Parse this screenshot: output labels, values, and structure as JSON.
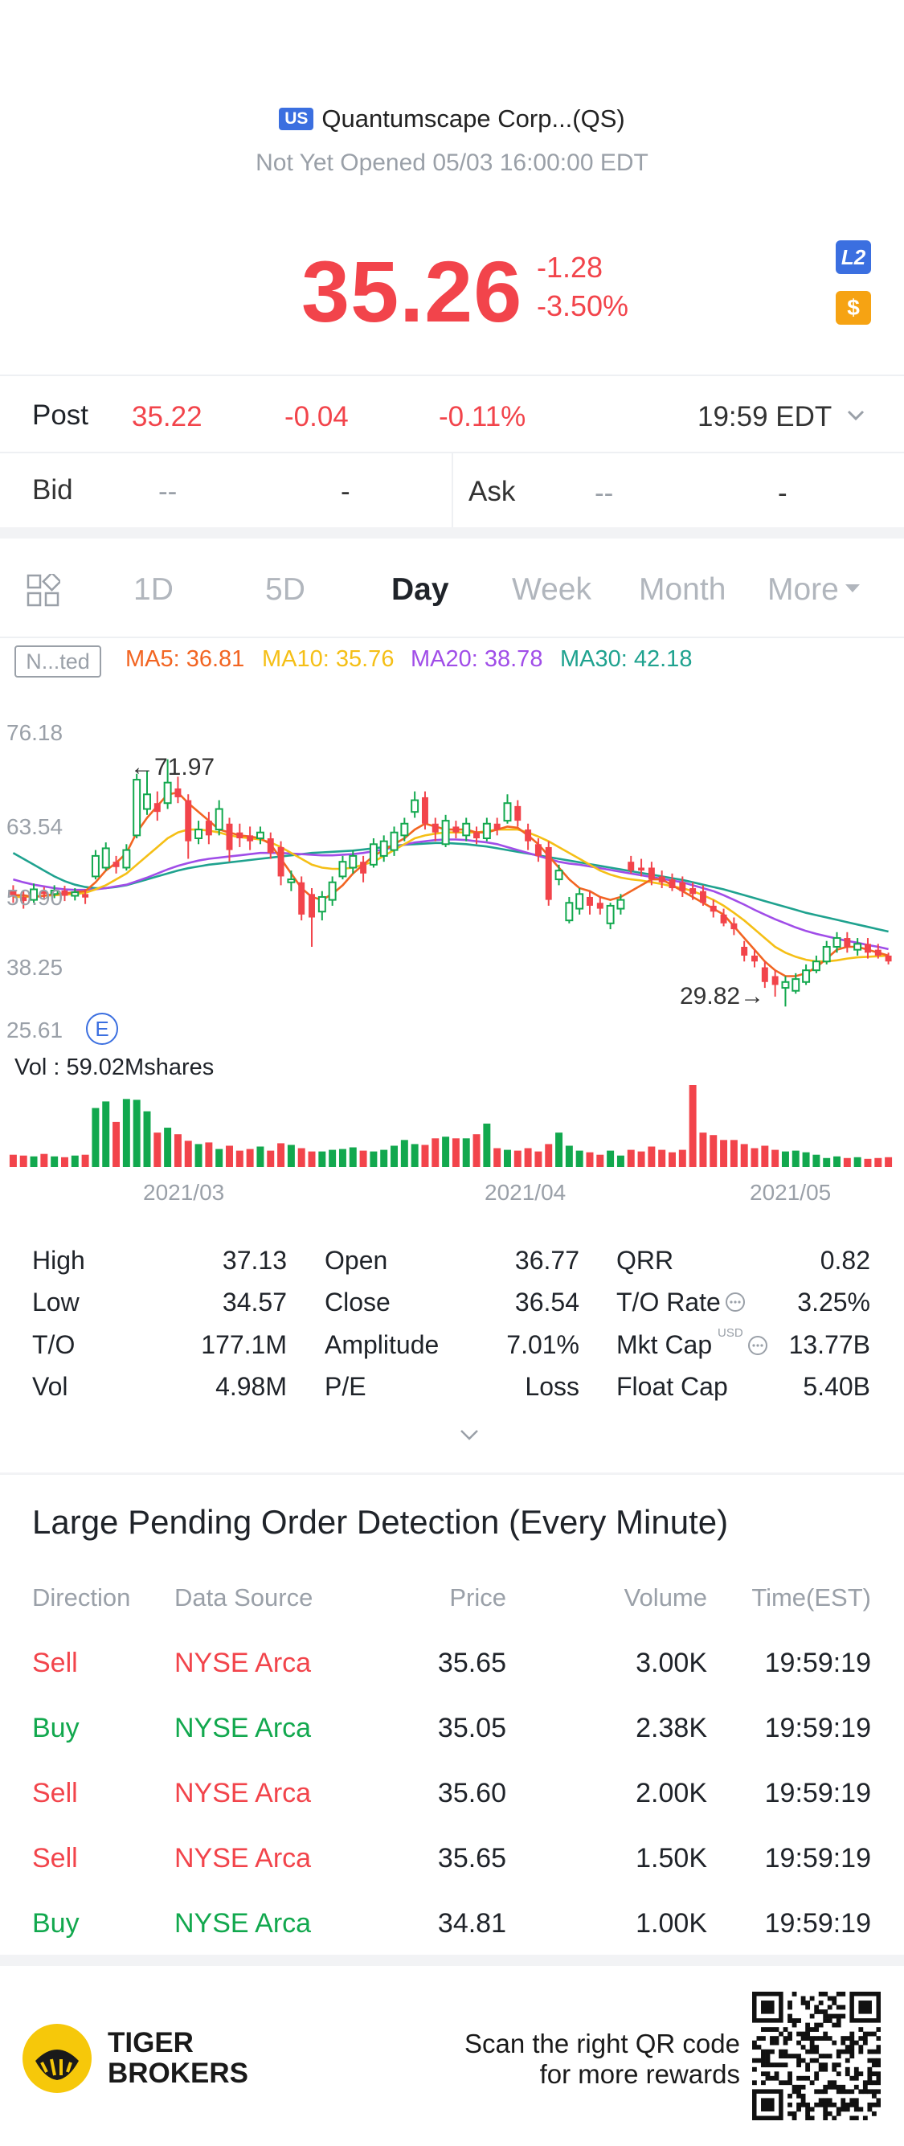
{
  "header": {
    "market_badge": "US",
    "stock_name": "Quantumscape Corp...(QS)",
    "status": "Not Yet Opened 05/03 16:00:00 EDT",
    "price": "35.26",
    "change": "-1.28",
    "change_pct": "-3.50%",
    "l2_icon_text": "L2",
    "dollar_icon_text": "$"
  },
  "post": {
    "label": "Post",
    "price": "35.22",
    "change": "-0.04",
    "change_pct": "-0.11%",
    "time": "19:59 EDT"
  },
  "bidask": {
    "bid_label": "Bid",
    "bid_price": "--",
    "bid_size": "-",
    "ask_label": "Ask",
    "ask_price": "--",
    "ask_size": "-"
  },
  "tabs": [
    "1D",
    "5D",
    "Day",
    "Week",
    "Month",
    "More"
  ],
  "active_tab": "Day",
  "ma": {
    "adjust_label": "N...ted",
    "ma5": "MA5: 36.81",
    "ma10": "MA10: 35.76",
    "ma20": "MA20: 38.78",
    "ma30": "MA30: 42.18",
    "colors": {
      "ma5": "#f26522",
      "ma10": "#f5bf16",
      "ma20": "#a04de8",
      "ma30": "#1fa28f"
    }
  },
  "chart_data": {
    "type": "candlestick",
    "y_ticks": [
      "76.18",
      "63.54",
      "50.90",
      "38.25",
      "25.61"
    ],
    "ylim": [
      25.61,
      76.18
    ],
    "high_annotation": "←71.97",
    "low_annotation": "29.82→",
    "event_marker": "E",
    "x_ticks": [
      "2021/03",
      "2021/04",
      "2021/05"
    ],
    "volume_label": "Vol  : 59.02Mshares",
    "candles": [
      {
        "o": 49.5,
        "c": 48.8,
        "h": 50.5,
        "l": 47.5
      },
      {
        "o": 48.5,
        "c": 47.8,
        "h": 49.5,
        "l": 46.5
      },
      {
        "o": 48.0,
        "c": 49.8,
        "h": 50.8,
        "l": 47.5
      },
      {
        "o": 49.5,
        "c": 49.0,
        "h": 50.2,
        "l": 48.0
      },
      {
        "o": 49.0,
        "c": 49.6,
        "h": 50.5,
        "l": 48.3
      },
      {
        "o": 49.6,
        "c": 48.7,
        "h": 50.4,
        "l": 47.8
      },
      {
        "o": 48.7,
        "c": 49.3,
        "h": 50.0,
        "l": 47.9
      },
      {
        "o": 49.0,
        "c": 48.4,
        "h": 49.8,
        "l": 47.3
      },
      {
        "o": 52.0,
        "c": 55.5,
        "h": 56.5,
        "l": 51.5
      },
      {
        "o": 53.5,
        "c": 56.8,
        "h": 57.8,
        "l": 53.0
      },
      {
        "o": 54.5,
        "c": 53.6,
        "h": 55.5,
        "l": 52.5
      },
      {
        "o": 53.5,
        "c": 56.5,
        "h": 57.5,
        "l": 53.0
      },
      {
        "o": 59.0,
        "c": 68.5,
        "h": 69.5,
        "l": 58.5
      },
      {
        "o": 63.5,
        "c": 66.0,
        "h": 70.0,
        "l": 62.5
      },
      {
        "o": 64.5,
        "c": 63.0,
        "h": 66.5,
        "l": 61.5
      },
      {
        "o": 64.5,
        "c": 68.0,
        "h": 71.97,
        "l": 63.5
      },
      {
        "o": 67.0,
        "c": 65.5,
        "h": 69.0,
        "l": 64.5
      },
      {
        "o": 65.0,
        "c": 58.0,
        "h": 66.0,
        "l": 55.0
      },
      {
        "o": 58.5,
        "c": 60.0,
        "h": 61.5,
        "l": 57.5
      },
      {
        "o": 61.5,
        "c": 59.0,
        "h": 63.0,
        "l": 57.5
      },
      {
        "o": 60.0,
        "c": 63.5,
        "h": 65.0,
        "l": 59.0
      },
      {
        "o": 61.0,
        "c": 56.5,
        "h": 62.0,
        "l": 54.5
      },
      {
        "o": 59.5,
        "c": 58.5,
        "h": 61.0,
        "l": 57.0
      },
      {
        "o": 59.0,
        "c": 58.0,
        "h": 60.5,
        "l": 56.5
      },
      {
        "o": 58.5,
        "c": 59.5,
        "h": 60.5,
        "l": 57.5
      },
      {
        "o": 58.5,
        "c": 56.0,
        "h": 59.5,
        "l": 55.0
      },
      {
        "o": 57.0,
        "c": 52.0,
        "h": 58.0,
        "l": 50.5
      },
      {
        "o": 51.0,
        "c": 51.5,
        "h": 53.0,
        "l": 49.5
      },
      {
        "o": 51.0,
        "c": 45.5,
        "h": 52.0,
        "l": 44.5
      },
      {
        "o": 49.0,
        "c": 45.0,
        "h": 50.0,
        "l": 40.0
      },
      {
        "o": 46.0,
        "c": 48.5,
        "h": 49.5,
        "l": 44.5
      },
      {
        "o": 48.0,
        "c": 51.0,
        "h": 52.0,
        "l": 47.0
      },
      {
        "o": 52.0,
        "c": 54.5,
        "h": 55.5,
        "l": 51.5
      },
      {
        "o": 53.5,
        "c": 55.5,
        "h": 56.5,
        "l": 52.5
      },
      {
        "o": 54.5,
        "c": 52.5,
        "h": 55.5,
        "l": 51.0
      },
      {
        "o": 54.0,
        "c": 57.5,
        "h": 58.5,
        "l": 53.5
      },
      {
        "o": 55.5,
        "c": 58.0,
        "h": 59.0,
        "l": 54.5
      },
      {
        "o": 56.5,
        "c": 59.5,
        "h": 60.5,
        "l": 55.5
      },
      {
        "o": 59.0,
        "c": 61.0,
        "h": 62.0,
        "l": 58.0
      },
      {
        "o": 63.0,
        "c": 65.0,
        "h": 66.5,
        "l": 62.0
      },
      {
        "o": 65.5,
        "c": 61.0,
        "h": 66.5,
        "l": 60.0
      },
      {
        "o": 61.0,
        "c": 59.5,
        "h": 62.0,
        "l": 58.0
      },
      {
        "o": 57.5,
        "c": 61.5,
        "h": 62.5,
        "l": 57.0
      },
      {
        "o": 60.5,
        "c": 59.5,
        "h": 61.5,
        "l": 58.5
      },
      {
        "o": 59.0,
        "c": 61.0,
        "h": 62.0,
        "l": 58.0
      },
      {
        "o": 59.5,
        "c": 58.5,
        "h": 60.5,
        "l": 57.5
      },
      {
        "o": 58.5,
        "c": 61.0,
        "h": 62.0,
        "l": 58.0
      },
      {
        "o": 61.0,
        "c": 60.0,
        "h": 62.0,
        "l": 59.0
      },
      {
        "o": 61.5,
        "c": 64.5,
        "h": 66.0,
        "l": 61.0
      },
      {
        "o": 64.0,
        "c": 61.5,
        "h": 65.0,
        "l": 60.5
      },
      {
        "o": 60.0,
        "c": 58.0,
        "h": 61.0,
        "l": 56.5
      },
      {
        "o": 57.5,
        "c": 55.5,
        "h": 58.5,
        "l": 54.5
      },
      {
        "o": 57.0,
        "c": 48.0,
        "h": 58.0,
        "l": 47.0
      },
      {
        "o": 51.5,
        "c": 53.0,
        "h": 54.0,
        "l": 50.5
      },
      {
        "o": 44.5,
        "c": 47.5,
        "h": 48.5,
        "l": 44.0
      },
      {
        "o": 46.5,
        "c": 49.0,
        "h": 50.0,
        "l": 45.5
      },
      {
        "o": 48.5,
        "c": 47.0,
        "h": 49.5,
        "l": 45.5
      },
      {
        "o": 47.5,
        "c": 46.5,
        "h": 48.5,
        "l": 45.5
      },
      {
        "o": 44.0,
        "c": 47.0,
        "h": 47.5,
        "l": 43.0
      },
      {
        "o": 46.5,
        "c": 48.0,
        "h": 49.0,
        "l": 45.5
      },
      {
        "o": 54.5,
        "c": 53.0,
        "h": 55.5,
        "l": 52.5
      },
      {
        "o": 53.5,
        "c": 53.0,
        "h": 55.0,
        "l": 52.0
      },
      {
        "o": 53.5,
        "c": 51.5,
        "h": 54.5,
        "l": 50.5
      },
      {
        "o": 52.0,
        "c": 51.0,
        "h": 53.0,
        "l": 50.0
      },
      {
        "o": 51.5,
        "c": 50.0,
        "h": 52.5,
        "l": 49.5
      },
      {
        "o": 51.0,
        "c": 49.5,
        "h": 52.0,
        "l": 48.5
      },
      {
        "o": 50.0,
        "c": 49.0,
        "h": 51.0,
        "l": 48.0
      },
      {
        "o": 49.5,
        "c": 47.5,
        "h": 50.5,
        "l": 47.0
      },
      {
        "o": 47.0,
        "c": 46.0,
        "h": 48.0,
        "l": 45.0
      },
      {
        "o": 45.5,
        "c": 44.0,
        "h": 46.5,
        "l": 43.5
      },
      {
        "o": 44.0,
        "c": 43.0,
        "h": 45.0,
        "l": 42.0
      },
      {
        "o": 40.0,
        "c": 38.5,
        "h": 41.0,
        "l": 37.5
      },
      {
        "o": 38.5,
        "c": 37.5,
        "h": 39.5,
        "l": 36.5
      },
      {
        "o": 36.5,
        "c": 34.0,
        "h": 37.5,
        "l": 33.0
      },
      {
        "o": 35.0,
        "c": 33.5,
        "h": 36.0,
        "l": 31.5
      },
      {
        "o": 33.0,
        "c": 34.0,
        "h": 35.0,
        "l": 29.82
      },
      {
        "o": 32.5,
        "c": 34.5,
        "h": 35.5,
        "l": 32.0
      },
      {
        "o": 34.0,
        "c": 36.0,
        "h": 37.0,
        "l": 33.5
      },
      {
        "o": 36.0,
        "c": 37.5,
        "h": 38.5,
        "l": 35.5
      },
      {
        "o": 37.5,
        "c": 40.0,
        "h": 41.0,
        "l": 37.0
      },
      {
        "o": 40.0,
        "c": 41.5,
        "h": 42.5,
        "l": 39.0
      },
      {
        "o": 41.5,
        "c": 40.0,
        "h": 42.5,
        "l": 39.0
      },
      {
        "o": 39.5,
        "c": 40.5,
        "h": 41.5,
        "l": 38.5
      },
      {
        "o": 40.5,
        "c": 39.0,
        "h": 41.5,
        "l": 38.0
      },
      {
        "o": 39.5,
        "c": 38.5,
        "h": 40.5,
        "l": 38.0
      },
      {
        "o": 38.5,
        "c": 37.5,
        "h": 39.0,
        "l": 37.0
      }
    ],
    "ma_lines": {
      "ma5": [
        48.8,
        48.8,
        48.5,
        48.7,
        49.0,
        49.1,
        49.3,
        49.5,
        51.0,
        53.0,
        54.3,
        56.0,
        59.5,
        62.0,
        64.0,
        66.0,
        66.3,
        64.5,
        63.0,
        61.5,
        60.0,
        59.5,
        59.0,
        58.8,
        58.5,
        57.5,
        55.0,
        52.5,
        50.0,
        48.5,
        48.0,
        49.0,
        50.5,
        52.5,
        54.0,
        55.5,
        56.5,
        57.5,
        58.5,
        60.0,
        61.0,
        60.5,
        60.0,
        60.0,
        60.0,
        59.5,
        59.5,
        60.0,
        60.5,
        60.3,
        59.0,
        57.5,
        55.5,
        53.5,
        51.5,
        50.0,
        49.5,
        48.5,
        48.0,
        48.5,
        49.5,
        50.5,
        51.5,
        51.5,
        50.5,
        49.5,
        48.5,
        47.5,
        46.5,
        45.5,
        43.5,
        41.5,
        39.5,
        37.5,
        36.0,
        35.0,
        35.0,
        35.5,
        36.5,
        38.0,
        39.5,
        40.0,
        40.0,
        39.5,
        39.0,
        38.5
      ],
      "ma10": [
        48.5,
        48.5,
        48.6,
        48.7,
        48.8,
        48.9,
        49.0,
        49.2,
        49.8,
        50.5,
        51.5,
        52.5,
        54.0,
        55.5,
        57.0,
        58.5,
        59.5,
        60.0,
        60.0,
        59.8,
        59.5,
        59.0,
        58.7,
        58.5,
        58.3,
        57.8,
        57.0,
        56.0,
        55.0,
        54.0,
        53.5,
        53.3,
        53.3,
        53.5,
        54.0,
        54.5,
        55.5,
        56.5,
        57.5,
        58.5,
        59.0,
        59.3,
        59.5,
        59.5,
        59.5,
        59.5,
        59.7,
        60.0,
        60.0,
        60.0,
        59.5,
        58.8,
        58.0,
        57.0,
        56.0,
        55.0,
        54.0,
        53.0,
        52.3,
        51.8,
        51.5,
        51.3,
        51.0,
        50.7,
        50.3,
        50.0,
        49.5,
        48.8,
        48.0,
        47.0,
        45.8,
        44.5,
        43.0,
        41.5,
        40.0,
        39.0,
        38.3,
        37.8,
        37.5,
        37.5,
        37.7,
        38.0,
        38.2,
        38.3,
        38.4,
        38.5
      ],
      "ma20": [
        51.5,
        51.0,
        50.6,
        50.3,
        50.0,
        49.8,
        49.7,
        49.7,
        49.8,
        50.0,
        50.3,
        50.6,
        51.2,
        51.8,
        52.5,
        53.2,
        53.8,
        54.3,
        54.7,
        55.0,
        55.2,
        55.4,
        55.6,
        55.8,
        56.0,
        56.0,
        56.0,
        55.9,
        55.8,
        55.7,
        55.6,
        55.6,
        55.7,
        55.8,
        56.0,
        56.3,
        56.6,
        57.0,
        57.4,
        57.8,
        58.0,
        58.2,
        58.3,
        58.3,
        58.2,
        58.0,
        57.8,
        57.5,
        57.0,
        56.5,
        56.0,
        55.5,
        55.0,
        54.5,
        54.2,
        54.0,
        53.7,
        53.4,
        53.1,
        52.8,
        52.5,
        52.2,
        51.9,
        51.6,
        51.3,
        51.0,
        50.5,
        50.0,
        49.5,
        48.8,
        48.0,
        47.2,
        46.3,
        45.5,
        44.7,
        44.0,
        43.3,
        42.7,
        42.2,
        41.8,
        41.4,
        41.0,
        40.7,
        40.3,
        40.0,
        39.6
      ],
      "ma30": [
        56.0,
        55.0,
        54.0,
        53.0,
        52.0,
        51.2,
        50.6,
        50.2,
        50.0,
        50.0,
        50.2,
        50.5,
        51.0,
        51.5,
        52.0,
        52.5,
        53.0,
        53.4,
        53.7,
        54.0,
        54.2,
        54.4,
        54.6,
        54.8,
        55.0,
        55.2,
        55.4,
        55.6,
        55.8,
        56.0,
        56.1,
        56.2,
        56.3,
        56.4,
        56.6,
        56.8,
        57.0,
        57.2,
        57.4,
        57.5,
        57.6,
        57.7,
        57.7,
        57.6,
        57.5,
        57.3,
        57.1,
        56.8,
        56.5,
        56.2,
        55.9,
        55.6,
        55.3,
        55.0,
        54.7,
        54.4,
        54.1,
        53.8,
        53.5,
        53.2,
        52.9,
        52.6,
        52.3,
        52.0,
        51.7,
        51.4,
        51.0,
        50.6,
        50.2,
        49.8,
        49.3,
        48.8,
        48.3,
        47.8,
        47.3,
        46.8,
        46.3,
        45.8,
        45.4,
        45.0,
        44.6,
        44.2,
        43.8,
        43.4,
        43.0,
        42.6
      ]
    },
    "volumes": [
      1.5,
      1.4,
      1.3,
      1.6,
      1.3,
      1.2,
      1.4,
      1.5,
      7.2,
      8.0,
      5.5,
      8.3,
      8.2,
      6.8,
      4.2,
      4.8,
      4.0,
      3.2,
      2.8,
      3.0,
      2.2,
      2.6,
      2.0,
      2.2,
      2.5,
      2.0,
      2.9,
      2.7,
      2.3,
      1.9,
      1.9,
      2.1,
      2.2,
      2.4,
      2.0,
      1.9,
      2.1,
      2.6,
      3.3,
      2.8,
      2.7,
      3.5,
      3.7,
      3.5,
      3.5,
      4.0,
      5.3,
      2.3,
      2.1,
      2.0,
      2.3,
      1.9,
      2.8,
      4.2,
      2.6,
      2.0,
      1.8,
      1.5,
      2.0,
      1.4,
      2.1,
      1.9,
      2.5,
      2.1,
      1.8,
      2.1,
      10.0,
      4.2,
      3.9,
      3.3,
      3.3,
      2.8,
      2.3,
      2.6,
      2.1,
      1.9,
      2.0,
      1.8,
      1.5,
      1.1,
      1.3,
      1.1,
      1.2,
      1.0,
      1.1,
      1.2
    ]
  },
  "stats": [
    [
      {
        "label": "High",
        "value": "37.13"
      },
      {
        "label": "Open",
        "value": "36.77"
      },
      {
        "label": "QRR",
        "value": "0.82"
      }
    ],
    [
      {
        "label": "Low",
        "value": "34.57"
      },
      {
        "label": "Close",
        "value": "36.54"
      },
      {
        "label": "T/O Rate",
        "value": "3.25%"
      }
    ],
    [
      {
        "label": "T/O",
        "value": "177.1M"
      },
      {
        "label": "Amplitude",
        "value": "7.01%"
      },
      {
        "label": "Mkt Cap",
        "value": "13.77B"
      }
    ],
    [
      {
        "label": "Vol",
        "value": "4.98M"
      },
      {
        "label": "P/E",
        "value": "Loss"
      },
      {
        "label": "Float Cap",
        "value": "5.40B"
      }
    ]
  ],
  "mktcap_superscript": "USD",
  "orders": {
    "title": "Large Pending Order Detection (Every Minute)",
    "headers": [
      "Direction",
      "Data Source",
      "Price",
      "Volume",
      "Time(EST)"
    ],
    "rows": [
      {
        "direction": "Sell",
        "source": "NYSE Arca",
        "price": "35.65",
        "volume": "3.00K",
        "time": "19:59:19"
      },
      {
        "direction": "Buy",
        "source": "NYSE Arca",
        "price": "35.05",
        "volume": "2.38K",
        "time": "19:59:19"
      },
      {
        "direction": "Sell",
        "source": "NYSE Arca",
        "price": "35.60",
        "volume": "2.00K",
        "time": "19:59:19"
      },
      {
        "direction": "Sell",
        "source": "NYSE Arca",
        "price": "35.65",
        "volume": "1.50K",
        "time": "19:59:19"
      },
      {
        "direction": "Buy",
        "source": "NYSE Arca",
        "price": "34.81",
        "volume": "1.00K",
        "time": "19:59:19"
      }
    ]
  },
  "footer": {
    "brand_line1": "TIGER",
    "brand_line2": "BROKERS",
    "promo_line1": "Scan the right QR code",
    "promo_line2": "for more rewards"
  },
  "colors": {
    "up": "#12a84e",
    "down": "#f2444b",
    "accent": "#3b6fe0"
  }
}
